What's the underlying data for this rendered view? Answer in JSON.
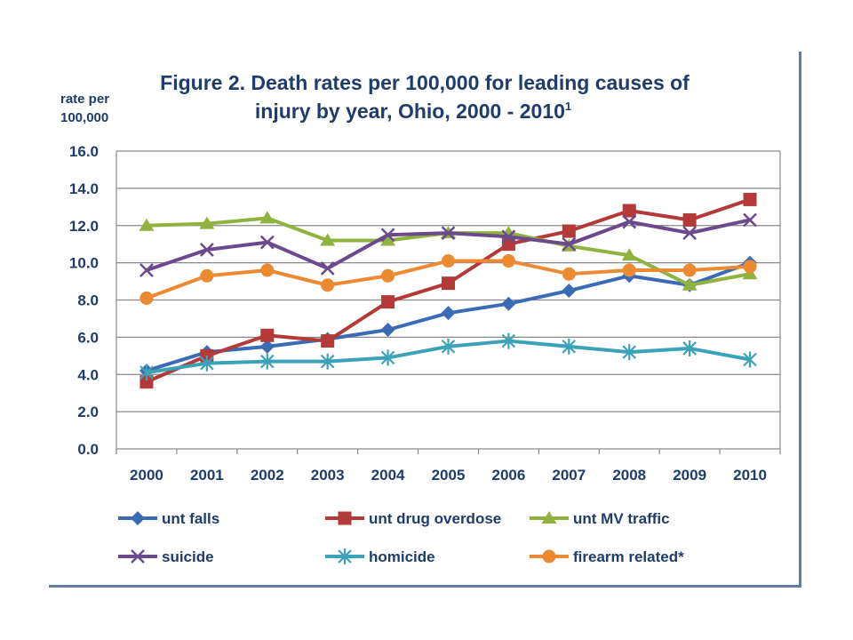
{
  "chart_data": {
    "type": "line",
    "title_line1": "Figure 2. Death rates per 100,000 for leading causes of",
    "title_line2": "injury by year, Ohio, 2000 - 2010",
    "title_superscript": "1",
    "ylabel_line1": "rate per",
    "ylabel_line2": "100,000",
    "ylim": [
      0,
      16
    ],
    "yticks": [
      "0.0",
      "2.0",
      "4.0",
      "6.0",
      "8.0",
      "10.0",
      "12.0",
      "14.0",
      "16.0"
    ],
    "ytick_values": [
      0,
      2,
      4,
      6,
      8,
      10,
      12,
      14,
      16
    ],
    "categories": [
      "2000",
      "2001",
      "2002",
      "2003",
      "2004",
      "2005",
      "2006",
      "2007",
      "2008",
      "2009",
      "2010"
    ],
    "grid": true,
    "legend_position": "bottom",
    "series": [
      {
        "name": "unt falls",
        "color": "#3b6bb5",
        "marker": "diamond",
        "values": [
          4.2,
          5.2,
          5.5,
          5.9,
          6.4,
          7.3,
          7.8,
          8.5,
          9.3,
          8.8,
          10.0
        ]
      },
      {
        "name": "unt drug overdose",
        "color": "#b33a38",
        "marker": "square",
        "values": [
          3.6,
          5.0,
          6.1,
          5.8,
          7.9,
          8.9,
          11.0,
          11.7,
          12.8,
          12.3,
          13.4
        ]
      },
      {
        "name": "unt MV traffic",
        "color": "#8fb33e",
        "marker": "triangle",
        "values": [
          12.0,
          12.1,
          12.4,
          11.2,
          11.2,
          11.6,
          11.6,
          10.9,
          10.4,
          8.8,
          9.4
        ]
      },
      {
        "name": "suicide",
        "color": "#6a4a8c",
        "marker": "x",
        "values": [
          9.6,
          10.7,
          11.1,
          9.7,
          11.5,
          11.6,
          11.4,
          11.0,
          12.2,
          11.6,
          12.3
        ]
      },
      {
        "name": "homicide",
        "color": "#3ba3b8",
        "marker": "asterisk",
        "values": [
          4.1,
          4.6,
          4.7,
          4.7,
          4.9,
          5.5,
          5.8,
          5.5,
          5.2,
          5.4,
          4.8
        ]
      },
      {
        "name": "firearm related*",
        "color": "#ec8a32",
        "marker": "circle",
        "values": [
          8.1,
          9.3,
          9.6,
          8.8,
          9.3,
          10.1,
          10.1,
          9.4,
          9.6,
          9.6,
          9.8
        ]
      }
    ]
  }
}
